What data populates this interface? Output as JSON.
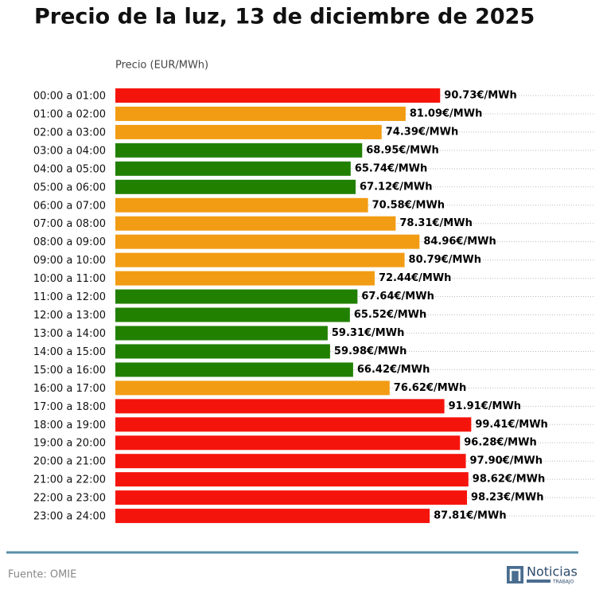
{
  "chart_data": {
    "type": "barh",
    "title": "Precio de la luz, 13 de diciembre de 2025",
    "x_label": "Precio (EUR/MWh)",
    "categories": [
      "00:00 a 01:00",
      "01:00 a 02:00",
      "02:00 a 03:00",
      "03:00 a 04:00",
      "04:00 a 05:00",
      "05:00 a 06:00",
      "06:00 a 07:00",
      "07:00 a 08:00",
      "08:00 a 09:00",
      "09:00 a 10:00",
      "10:00 a 11:00",
      "11:00 a 12:00",
      "12:00 a 13:00",
      "13:00 a 14:00",
      "14:00 a 15:00",
      "15:00 a 16:00",
      "16:00 a 17:00",
      "17:00 a 18:00",
      "18:00 a 19:00",
      "19:00 a 20:00",
      "20:00 a 21:00",
      "21:00 a 22:00",
      "22:00 a 23:00",
      "23:00 a 24:00"
    ],
    "values": [
      90.73,
      81.09,
      74.39,
      68.95,
      65.74,
      67.12,
      70.58,
      78.31,
      84.96,
      80.79,
      72.44,
      67.64,
      65.52,
      59.31,
      59.98,
      66.42,
      76.62,
      91.91,
      99.41,
      96.28,
      97.9,
      98.62,
      98.23,
      87.81
    ],
    "value_labels": [
      "90.73€/MWh",
      "81.09€/MWh",
      "74.39€/MWh",
      "68.95€/MWh",
      "65.74€/MWh",
      "67.12€/MWh",
      "70.58€/MWh",
      "78.31€/MWh",
      "84.96€/MWh",
      "80.79€/MWh",
      "72.44€/MWh",
      "67.64€/MWh",
      "65.52€/MWh",
      "59.31€/MWh",
      "59.98€/MWh",
      "66.42€/MWh",
      "76.62€/MWh",
      "91.91€/MWh",
      "99.41€/MWh",
      "96.28€/MWh",
      "97.90€/MWh",
      "98.62€/MWh",
      "98.23€/MWh",
      "87.81€/MWh"
    ],
    "colors": [
      "#f5140c",
      "#f29c14",
      "#f29c14",
      "#218000",
      "#218000",
      "#218000",
      "#f29c14",
      "#f29c14",
      "#f29c14",
      "#f29c14",
      "#f29c14",
      "#218000",
      "#218000",
      "#218000",
      "#218000",
      "#218000",
      "#f29c14",
      "#f5140c",
      "#f5140c",
      "#f5140c",
      "#f5140c",
      "#f5140c",
      "#f5140c",
      "#f5140c"
    ],
    "xlim": [
      0,
      134
    ],
    "source": "Fuente: OMIE"
  },
  "logo": {
    "name": "Noticias",
    "tagline": "TRABAJO"
  }
}
